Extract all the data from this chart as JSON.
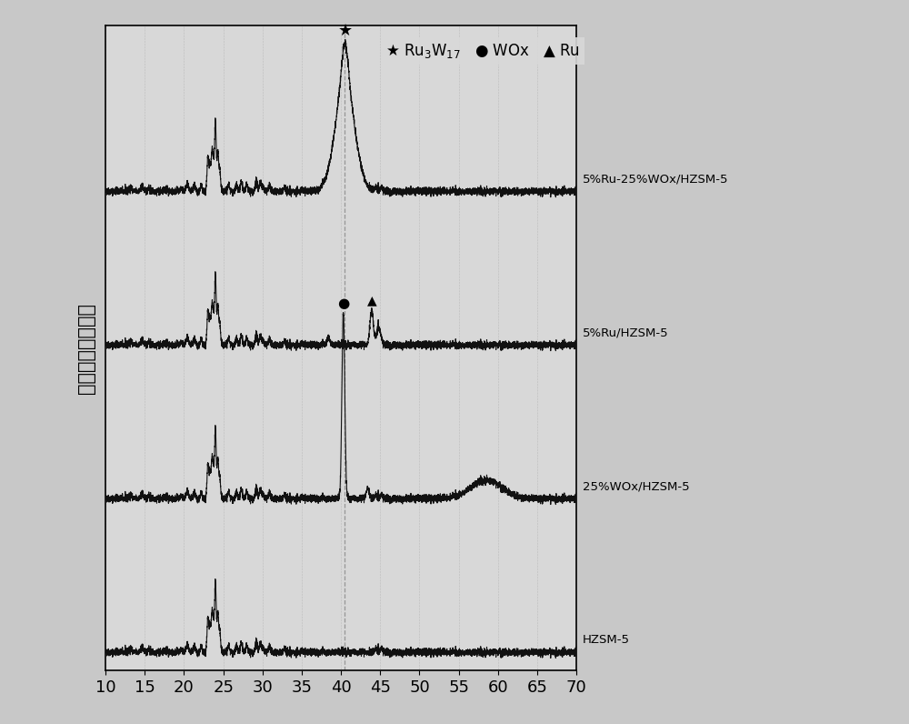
{
  "xlabel": "",
  "ylabel": "强度（任意单位）",
  "xlim": [
    10,
    70
  ],
  "background_color": "#c8c8c8",
  "plot_bg_color": "#d8d8d8",
  "dashed_line_x": 40.5,
  "series_labels": [
    "5%Ru-25%WOx/HZSM-5",
    "5%Ru/HZSM-5",
    "25%WOx/HZSM-5",
    "HZSM-5"
  ],
  "series_offsets": [
    0.78,
    0.53,
    0.28,
    0.03
  ],
  "tick_fontsize": 13,
  "label_fontsize": 15,
  "line_color": "#111111",
  "line_width": 0.8,
  "scale": 1.0
}
